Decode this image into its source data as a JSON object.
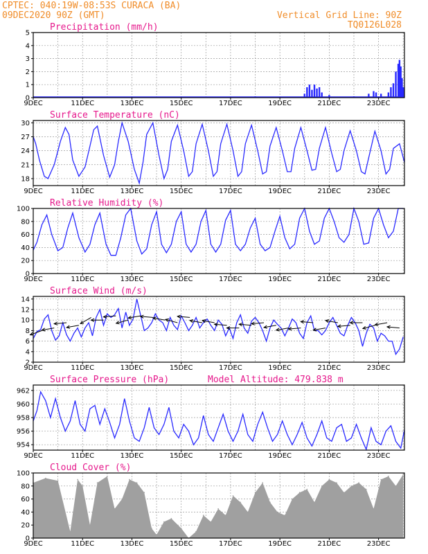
{
  "header": {
    "left_line1": "CPTEC:  040:19W-08:53S  CURACA (BA)",
    "left_line2": "09DEC2020 90Z (GMT)",
    "right_line1": "Vertical Grid Line: 90Z",
    "right_line2": "TQ0126L028"
  },
  "colors": {
    "header": "#f08c28",
    "title": "#e6198c",
    "series": "#2828ff",
    "cloud": "#a0a0a0",
    "arrow": "#000000"
  },
  "chart_data": [
    {
      "id": "precip",
      "type": "bar",
      "title": "Precipitation (mm/h)",
      "ylim": [
        0,
        5
      ],
      "yticks": [
        0,
        1,
        2,
        3,
        4,
        5
      ],
      "x_days": [
        9,
        11,
        13,
        15,
        17,
        19,
        21,
        23
      ],
      "x_labels": [
        "9DEC",
        "11DEC",
        "13DEC",
        "15DEC",
        "17DEC",
        "19DEC",
        "21DEC",
        "23DEC"
      ],
      "xlim": [
        9,
        24.05
      ],
      "x": [
        18.0,
        18.1,
        20.0,
        20.1,
        20.2,
        20.3,
        20.4,
        20.5,
        20.6,
        20.7,
        21.0,
        22.0,
        22.6,
        22.8,
        22.9,
        23.1,
        23.4,
        23.5,
        23.6,
        23.7,
        23.8,
        23.85,
        23.9,
        23.95,
        24.0
      ],
      "values": [
        0.1,
        0.05,
        0.3,
        0.8,
        1.0,
        0.6,
        1.0,
        0.7,
        0.8,
        0.4,
        0.2,
        0.1,
        0.3,
        0.5,
        0.4,
        0.3,
        0.4,
        0.8,
        1.1,
        2.0,
        2.6,
        2.9,
        2.4,
        1.5,
        0.8
      ]
    },
    {
      "id": "temp",
      "type": "line",
      "title": "Surface Temperature (nC)",
      "ylim": [
        16.5,
        30.5
      ],
      "yticks": [
        18,
        21,
        24,
        27,
        30
      ],
      "x_days": [
        9,
        11,
        13,
        15,
        17,
        19,
        21,
        23
      ],
      "x_labels": [
        "9DEC",
        "11DEC",
        "13DEC",
        "15DEC",
        "17DEC",
        "19DEC",
        "21DEC",
        "23DEC"
      ],
      "xlim": [
        9,
        24.05
      ],
      "series": [
        {
          "x": [
            9.0,
            9.1,
            9.25,
            9.45,
            9.6,
            9.85,
            10.1,
            10.3,
            10.45,
            10.6,
            10.85,
            11.1,
            11.3,
            11.45,
            11.6,
            11.85,
            12.1,
            12.3,
            12.45,
            12.6,
            12.85,
            13.1,
            13.3,
            13.45,
            13.6,
            13.85,
            14.1,
            14.3,
            14.45,
            14.6,
            14.85,
            15.1,
            15.3,
            15.45,
            15.6,
            15.85,
            16.1,
            16.3,
            16.45,
            16.6,
            16.85,
            17.1,
            17.3,
            17.45,
            17.6,
            17.85,
            18.1,
            18.3,
            18.45,
            18.6,
            18.85,
            19.1,
            19.3,
            19.45,
            19.6,
            19.85,
            20.1,
            20.3,
            20.45,
            20.6,
            20.85,
            21.1,
            21.3,
            21.45,
            21.6,
            21.85,
            22.1,
            22.3,
            22.45,
            22.6,
            22.85,
            23.1,
            23.3,
            23.45,
            23.6,
            23.85,
            24.05
          ],
          "values": [
            27.0,
            25.5,
            22.0,
            18.5,
            18.0,
            21.0,
            26.0,
            29.0,
            27.5,
            22.0,
            18.5,
            20.5,
            25.0,
            28.5,
            29.3,
            23.0,
            18.3,
            21.0,
            26.0,
            30.0,
            26.0,
            20.0,
            17.0,
            21.5,
            27.5,
            30.0,
            23.0,
            18.0,
            20.0,
            26.0,
            29.5,
            24.0,
            18.5,
            19.5,
            25.5,
            29.7,
            24.0,
            18.5,
            19.5,
            25.5,
            29.7,
            24.0,
            18.5,
            19.5,
            25.5,
            29.5,
            24.0,
            19.0,
            19.5,
            25.0,
            29.0,
            24.0,
            19.5,
            19.5,
            24.5,
            29.0,
            24.0,
            19.8,
            20.0,
            24.5,
            29.0,
            23.5,
            19.5,
            20.0,
            24.0,
            28.3,
            24.0,
            19.5,
            19.0,
            22.5,
            28.2,
            24.0,
            19.0,
            20.0,
            24.5,
            25.5,
            21.5
          ]
        }
      ]
    },
    {
      "id": "rh",
      "type": "line",
      "title": "Relative Humidity (%)",
      "ylim": [
        0,
        100
      ],
      "yticks": [
        0,
        20,
        40,
        60,
        80,
        100
      ],
      "x_days": [
        9,
        11,
        13,
        15,
        17,
        19,
        21,
        23
      ],
      "x_labels": [
        "9DEC",
        "11DEC",
        "13DEC",
        "15DEC",
        "17DEC",
        "19DEC",
        "21DEC",
        "23DEC"
      ],
      "xlim": [
        9,
        24.05
      ],
      "series": [
        {
          "x": [
            9.0,
            9.15,
            9.35,
            9.55,
            9.75,
            10.0,
            10.2,
            10.4,
            10.6,
            10.85,
            11.1,
            11.3,
            11.5,
            11.7,
            11.95,
            12.15,
            12.35,
            12.55,
            12.75,
            12.95,
            13.2,
            13.4,
            13.6,
            13.8,
            14.0,
            14.2,
            14.4,
            14.6,
            14.8,
            15.0,
            15.2,
            15.4,
            15.6,
            15.8,
            16.0,
            16.2,
            16.4,
            16.6,
            16.8,
            17.0,
            17.2,
            17.4,
            17.6,
            17.8,
            18.0,
            18.2,
            18.4,
            18.6,
            18.8,
            19.0,
            19.2,
            19.4,
            19.6,
            19.8,
            20.0,
            20.2,
            20.4,
            20.6,
            20.8,
            21.0,
            21.2,
            21.4,
            21.6,
            21.8,
            22.0,
            22.2,
            22.4,
            22.6,
            22.8,
            23.0,
            23.2,
            23.4,
            23.6,
            23.8,
            24.0
          ],
          "values": [
            36,
            48,
            75,
            90,
            60,
            35,
            40,
            70,
            93,
            55,
            33,
            45,
            75,
            93,
            45,
            28,
            28,
            55,
            90,
            100,
            50,
            30,
            38,
            75,
            95,
            45,
            32,
            45,
            80,
            95,
            45,
            33,
            45,
            80,
            97,
            45,
            33,
            45,
            82,
            97,
            45,
            35,
            45,
            70,
            85,
            45,
            35,
            40,
            65,
            88,
            55,
            38,
            45,
            85,
            100,
            65,
            45,
            50,
            85,
            100,
            80,
            55,
            48,
            60,
            100,
            80,
            45,
            47,
            85,
            100,
            75,
            55,
            65,
            100,
            100
          ]
        }
      ]
    },
    {
      "id": "wind",
      "type": "line",
      "title": "Surface Wind (m/s)",
      "ylim": [
        2,
        14.5
      ],
      "yticks": [
        2,
        4,
        6,
        8,
        10,
        12,
        14
      ],
      "x_days": [
        9,
        11,
        13,
        15,
        17,
        19,
        21,
        23
      ],
      "x_labels": [
        "9DEC",
        "11DEC",
        "13DEC",
        "15DEC",
        "17DEC",
        "19DEC",
        "21DEC",
        "23DEC"
      ],
      "xlim": [
        9,
        24.05
      ],
      "series": [
        {
          "x": [
            9.0,
            9.15,
            9.3,
            9.45,
            9.6,
            9.75,
            9.9,
            10.05,
            10.2,
            10.35,
            10.5,
            10.65,
            10.8,
            10.95,
            11.1,
            11.25,
            11.4,
            11.55,
            11.7,
            11.85,
            12.0,
            12.15,
            12.3,
            12.45,
            12.6,
            12.75,
            12.9,
            13.05,
            13.2,
            13.35,
            13.5,
            13.65,
            13.8,
            13.95,
            14.1,
            14.25,
            14.4,
            14.55,
            14.7,
            14.85,
            15.0,
            15.15,
            15.3,
            15.45,
            15.6,
            15.75,
            15.9,
            16.05,
            16.2,
            16.35,
            16.5,
            16.65,
            16.8,
            16.95,
            17.1,
            17.25,
            17.4,
            17.55,
            17.7,
            17.85,
            18.0,
            18.15,
            18.3,
            18.45,
            18.6,
            18.75,
            18.9,
            19.05,
            19.2,
            19.35,
            19.5,
            19.65,
            19.8,
            19.95,
            20.1,
            20.25,
            20.4,
            20.55,
            20.7,
            20.85,
            21.0,
            21.15,
            21.3,
            21.45,
            21.6,
            21.75,
            21.9,
            22.05,
            22.2,
            22.35,
            22.5,
            22.65,
            22.8,
            22.95,
            23.1,
            23.25,
            23.4,
            23.55,
            23.7,
            23.85,
            24.0
          ],
          "values": [
            6.5,
            7.8,
            8.2,
            10.2,
            11.0,
            8.0,
            6.2,
            7.0,
            9.5,
            7.2,
            6.0,
            7.5,
            8.5,
            6.8,
            8.5,
            9.5,
            7.0,
            10.5,
            12.0,
            9.0,
            11.2,
            10.5,
            11.0,
            12.2,
            8.5,
            11.5,
            9.0,
            10.2,
            14.0,
            11.0,
            8.0,
            8.5,
            9.5,
            11.2,
            10.0,
            9.5,
            8.0,
            10.5,
            9.0,
            8.2,
            10.8,
            9.5,
            8.0,
            9.0,
            10.5,
            8.5,
            9.5,
            10.2,
            9.0,
            8.0,
            10.0,
            9.2,
            7.0,
            8.5,
            6.5,
            9.5,
            11.0,
            8.5,
            7.5,
            9.8,
            10.5,
            9.5,
            8.0,
            6.0,
            8.5,
            10.0,
            9.2,
            8.5,
            7.0,
            8.5,
            10.2,
            9.5,
            7.5,
            6.5,
            9.5,
            10.8,
            8.0,
            8.0,
            7.2,
            8.0,
            9.5,
            10.5,
            9.0,
            7.5,
            7.0,
            9.0,
            10.5,
            9.5,
            8.0,
            5.0,
            7.5,
            9.2,
            8.5,
            6.0,
            7.5,
            7.0,
            6.0,
            6.0,
            3.5,
            4.5,
            6.8
          ]
        }
      ],
      "arrows": {
        "x": [
          9.35,
          9.85,
          10.35,
          10.85,
          11.35,
          11.85,
          12.35,
          12.85,
          13.35,
          13.85,
          14.35,
          14.85,
          15.35,
          15.85,
          16.35,
          16.85,
          17.35,
          17.85,
          18.35,
          18.85,
          19.35,
          19.85,
          20.35,
          20.85,
          21.35,
          21.85,
          22.35,
          22.85,
          23.35,
          23.85
        ],
        "speed": [
          8.0,
          8.5,
          9.5,
          9.0,
          10.5,
          10.0,
          10.8,
          10.0,
          10.8,
          10.5,
          10.0,
          9.5,
          10.5,
          9.5,
          9.5,
          9.0,
          8.5,
          9.0,
          9.5,
          9.0,
          8.5,
          8.5,
          9.5,
          8.5,
          9.5,
          9.0,
          9.5,
          9.0,
          9.5,
          8.5
        ],
        "direction_from_deg": [
          70,
          80,
          85,
          80,
          60,
          90,
          85,
          75,
          80,
          95,
          100,
          105,
          95,
          100,
          100,
          95,
          90,
          95,
          85,
          80,
          80,
          85,
          95,
          80,
          100,
          85,
          90,
          75,
          80,
          95
        ]
      }
    },
    {
      "id": "pres",
      "type": "line",
      "title": "Surface Pressure (hPa)",
      "annotation": "Model Altitude: 479.838 m",
      "ylim": [
        953.2,
        962.8
      ],
      "yticks": [
        954,
        956,
        958,
        960,
        962
      ],
      "x_days": [
        9,
        11,
        13,
        15,
        17,
        19,
        21,
        23
      ],
      "x_labels": [
        "9DEC",
        "11DEC",
        "13DEC",
        "15DEC",
        "17DEC",
        "19DEC",
        "21DEC",
        "23DEC"
      ],
      "xlim": [
        9,
        24.05
      ],
      "series": [
        {
          "x": [
            9.0,
            9.15,
            9.3,
            9.5,
            9.7,
            9.9,
            10.1,
            10.3,
            10.5,
            10.7,
            10.9,
            11.1,
            11.3,
            11.5,
            11.7,
            11.9,
            12.1,
            12.3,
            12.5,
            12.7,
            12.9,
            13.1,
            13.3,
            13.5,
            13.7,
            13.9,
            14.1,
            14.3,
            14.5,
            14.7,
            14.9,
            15.1,
            15.3,
            15.5,
            15.7,
            15.9,
            16.1,
            16.3,
            16.5,
            16.7,
            16.9,
            17.1,
            17.3,
            17.5,
            17.7,
            17.9,
            18.1,
            18.3,
            18.5,
            18.7,
            18.9,
            19.1,
            19.3,
            19.5,
            19.7,
            19.9,
            20.1,
            20.3,
            20.5,
            20.7,
            20.9,
            21.1,
            21.3,
            21.5,
            21.7,
            21.9,
            22.1,
            22.3,
            22.5,
            22.7,
            22.9,
            23.1,
            23.3,
            23.5,
            23.7,
            23.9,
            24.05
          ],
          "values": [
            957.5,
            959.0,
            961.8,
            960.5,
            958.0,
            960.8,
            958.0,
            956.0,
            957.5,
            960.5,
            957.0,
            956.0,
            959.3,
            959.8,
            957.0,
            959.3,
            957.3,
            955.0,
            957.0,
            960.8,
            957.5,
            955.0,
            954.5,
            956.5,
            959.5,
            956.5,
            955.5,
            957.0,
            959.5,
            956.0,
            955.0,
            957.0,
            956.0,
            954.0,
            955.0,
            958.3,
            955.5,
            954.5,
            956.5,
            958.5,
            956.0,
            954.5,
            956.0,
            958.5,
            955.5,
            954.5,
            957.0,
            958.8,
            956.5,
            954.5,
            955.5,
            957.5,
            955.5,
            954.0,
            955.5,
            957.3,
            955.0,
            953.8,
            955.5,
            957.5,
            955.0,
            954.5,
            956.5,
            957.0,
            954.5,
            955.0,
            957.0,
            955.0,
            953.3,
            956.5,
            954.5,
            954.0,
            956.0,
            956.8,
            954.5,
            953.5,
            956.2
          ]
        }
      ]
    },
    {
      "id": "cloud",
      "type": "bar",
      "title": "Cloud Cover (%)",
      "ylim": [
        0,
        100
      ],
      "yticks": [
        0,
        20,
        40,
        60,
        80,
        100
      ],
      "x_days": [
        9,
        11,
        13,
        15,
        17,
        19,
        21,
        23
      ],
      "x_labels": [
        "9DEC",
        "11DEC",
        "13DEC",
        "15DEC",
        "17DEC",
        "19DEC",
        "21DEC",
        "23DEC"
      ],
      "xlim": [
        9,
        24.05
      ],
      "x": [
        9.0,
        9.5,
        10.0,
        10.5,
        10.8,
        11.0,
        11.3,
        11.6,
        12.0,
        12.3,
        12.6,
        12.9,
        13.2,
        13.5,
        13.8,
        14.0,
        14.3,
        14.6,
        15.0,
        15.3,
        15.6,
        15.9,
        16.2,
        16.5,
        16.8,
        17.1,
        17.4,
        17.7,
        18.0,
        18.3,
        18.6,
        18.9,
        19.2,
        19.5,
        19.8,
        20.1,
        20.4,
        20.7,
        21.0,
        21.3,
        21.6,
        21.9,
        22.2,
        22.5,
        22.8,
        23.1,
        23.4,
        23.7,
        24.0
      ],
      "values": [
        85,
        92,
        88,
        10,
        90,
        80,
        20,
        85,
        95,
        45,
        60,
        90,
        85,
        70,
        15,
        5,
        25,
        30,
        15,
        0,
        10,
        35,
        25,
        45,
        35,
        65,
        55,
        40,
        70,
        85,
        55,
        40,
        35,
        60,
        70,
        75,
        55,
        80,
        90,
        85,
        70,
        80,
        85,
        75,
        45,
        90,
        95,
        80,
        98
      ]
    }
  ]
}
